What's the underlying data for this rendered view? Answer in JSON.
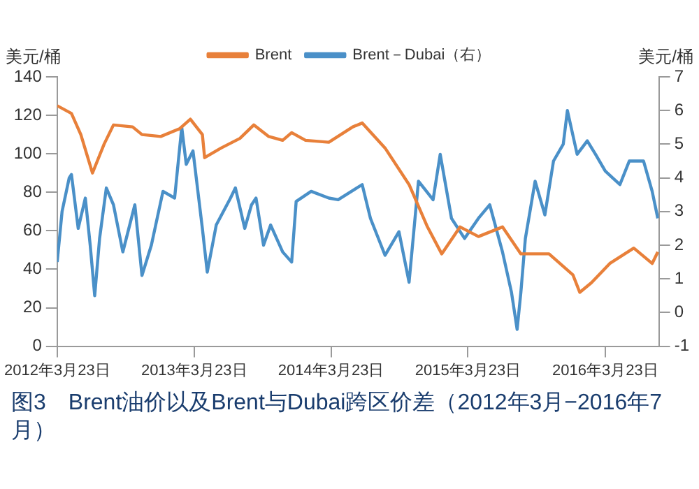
{
  "chart_data": {
    "type": "line",
    "title": "图3　Brent油价以及Brent与Dubai跨区价差（2012年3月−2016年7月）",
    "ylabel": "美元/桶",
    "y2label": "美元/桶",
    "legend": "top",
    "xlim": [
      "2012-03-23",
      "2016-08-13"
    ],
    "xticks": [
      {
        "value": "2012-03-23",
        "label": "2012年3月23日"
      },
      {
        "value": "2013-03-23",
        "label": "2013年3月23日"
      },
      {
        "value": "2014-03-23",
        "label": "2014年3月23日"
      },
      {
        "value": "2015-03-23",
        "label": "2015年3月23日"
      },
      {
        "value": "2016-03-23",
        "label": "2016年3月23日"
      }
    ],
    "ylim": [
      0,
      140
    ],
    "yticks": [
      0,
      20,
      40,
      60,
      80,
      100,
      120,
      140
    ],
    "y2lim": [
      -1,
      7
    ],
    "y2ticks": [
      -1,
      0,
      1,
      2,
      3,
      4,
      5,
      6,
      7
    ],
    "series": [
      {
        "name": "Brent",
        "color": "#e8803a",
        "x": [
          "2012-03-23",
          "2012-04-30",
          "2012-05-25",
          "2012-06-25",
          "2012-07-26",
          "2012-08-20",
          "2012-10-10",
          "2012-11-04",
          "2012-12-24",
          "2013-02-12",
          "2013-03-13",
          "2013-04-14",
          "2013-04-20",
          "2013-06-03",
          "2013-07-23",
          "2013-08-29",
          "2013-10-08",
          "2013-11-14",
          "2013-12-08",
          "2014-01-14",
          "2014-03-17",
          "2014-05-20",
          "2014-06-14",
          "2014-08-14",
          "2014-10-17",
          "2014-12-05",
          "2015-01-12",
          "2015-03-02",
          "2015-04-20",
          "2015-06-23",
          "2015-08-11",
          "2015-10-25",
          "2015-12-28",
          "2016-01-15",
          "2016-02-15",
          "2016-04-04",
          "2016-06-07",
          "2016-07-26",
          "2016-08-10"
        ],
        "values": [
          125,
          121,
          110,
          90,
          105,
          115,
          114,
          110,
          109,
          113,
          118,
          110,
          98,
          103,
          108,
          115,
          109,
          107,
          111,
          107,
          106,
          114,
          116,
          103,
          84,
          62,
          48,
          62,
          57,
          62,
          48,
          48,
          37,
          28,
          33,
          43,
          51,
          43,
          49
        ]
      },
      {
        "name": "Brent－Dubai（右）",
        "color": "#4a90c8",
        "axis": "y2",
        "x": [
          "2012-03-23",
          "2012-04-05",
          "2012-04-24",
          "2012-04-30",
          "2012-05-18",
          "2012-06-06",
          "2012-06-19",
          "2012-07-01",
          "2012-07-14",
          "2012-08-01",
          "2012-08-20",
          "2012-09-14",
          "2012-10-16",
          "2012-11-04",
          "2012-11-29",
          "2012-12-30",
          "2013-01-30",
          "2013-02-18",
          "2013-03-02",
          "2013-03-20",
          "2013-04-14",
          "2013-04-27",
          "2013-05-21",
          "2013-06-28",
          "2013-07-11",
          "2013-08-05",
          "2013-08-23",
          "2013-09-04",
          "2013-09-24",
          "2013-10-13",
          "2013-11-14",
          "2013-12-08",
          "2013-12-20",
          "2014-01-29",
          "2014-03-17",
          "2014-04-11",
          "2014-06-14",
          "2014-07-06",
          "2014-08-14",
          "2014-09-20",
          "2014-10-17",
          "2014-11-11",
          "2014-12-20",
          "2015-01-08",
          "2015-02-07",
          "2015-03-14",
          "2015-04-20",
          "2015-05-20",
          "2015-06-23",
          "2015-07-17",
          "2015-08-01",
          "2015-08-11",
          "2015-08-23",
          "2015-09-18",
          "2015-10-14",
          "2015-11-06",
          "2015-12-02",
          "2015-12-13",
          "2016-01-08",
          "2016-02-04",
          "2016-02-26",
          "2016-03-23",
          "2016-05-01",
          "2016-05-26",
          "2016-07-03",
          "2016-07-26",
          "2016-08-10"
        ],
        "values": [
          1.5,
          3.0,
          4.0,
          4.1,
          2.5,
          3.4,
          2.0,
          0.5,
          2.2,
          3.7,
          3.2,
          1.8,
          3.2,
          1.1,
          2.0,
          3.6,
          3.4,
          5.5,
          4.4,
          4.8,
          2.5,
          1.2,
          2.6,
          3.4,
          3.7,
          2.5,
          3.2,
          3.4,
          2.0,
          2.6,
          1.8,
          1.5,
          3.3,
          3.6,
          3.4,
          3.35,
          3.8,
          2.8,
          1.7,
          2.4,
          0.9,
          3.9,
          3.35,
          4.7,
          2.8,
          2.2,
          2.8,
          3.2,
          1.8,
          0.6,
          -0.5,
          0.6,
          2.2,
          3.9,
          2.9,
          4.5,
          5.0,
          6.0,
          4.7,
          5.1,
          4.7,
          4.2,
          3.8,
          4.5,
          4.5,
          3.6,
          2.8
        ]
      }
    ]
  }
}
